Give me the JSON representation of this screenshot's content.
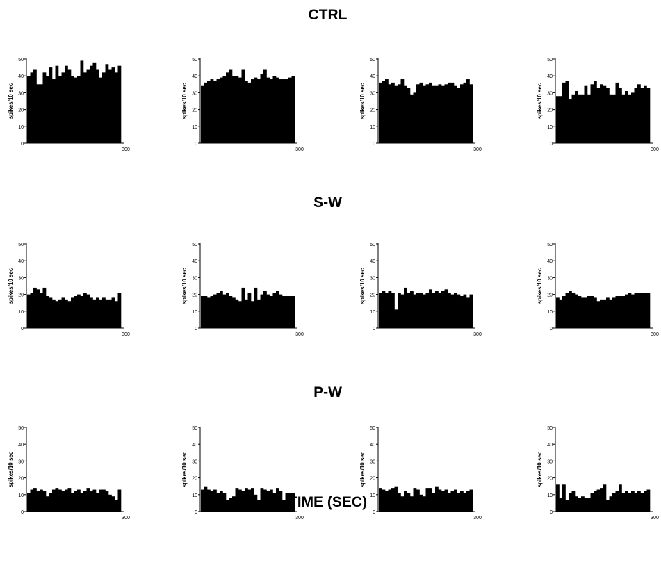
{
  "figure": {
    "x_axis_title": "TIME (SEC)",
    "y_axis_label": "spikes/10 sec",
    "bar_color": "#000000"
  },
  "chart_data": [
    {
      "type": "bar",
      "section": "CTRL",
      "panels": [
        {
          "ylabel": "spikes/10 sec",
          "ylim": [
            0,
            50
          ],
          "yticks": [
            0,
            10,
            20,
            30,
            40,
            50
          ],
          "xlim": [
            0,
            300
          ],
          "xtick_labels": [
            "300"
          ],
          "values": [
            40,
            42,
            44,
            35,
            35,
            42,
            40,
            45,
            38,
            46,
            40,
            42,
            46,
            44,
            40,
            39,
            40,
            49,
            42,
            44,
            46,
            48,
            44,
            39,
            42,
            47,
            44,
            45,
            42,
            46
          ]
        },
        {
          "ylabel": "spikes/10 sec",
          "ylim": [
            0,
            50
          ],
          "yticks": [
            0,
            10,
            20,
            30,
            40,
            50
          ],
          "xlim": [
            0,
            300
          ],
          "xtick_labels": [
            "300"
          ],
          "values": [
            34,
            36,
            37,
            38,
            37,
            38,
            39,
            40,
            42,
            44,
            40,
            40,
            39,
            44,
            37,
            36,
            38,
            39,
            38,
            41,
            44,
            39,
            38,
            40,
            39,
            38,
            38,
            38,
            39,
            40
          ]
        },
        {
          "ylabel": "spikes/10 sec",
          "ylim": [
            0,
            50
          ],
          "yticks": [
            0,
            10,
            20,
            30,
            40,
            50
          ],
          "xlim": [
            0,
            300
          ],
          "xtick_labels": [
            "300"
          ],
          "values": [
            36,
            37,
            38,
            35,
            36,
            34,
            35,
            38,
            34,
            33,
            29,
            30,
            35,
            36,
            34,
            35,
            36,
            34,
            34,
            35,
            34,
            35,
            36,
            36,
            34,
            33,
            35,
            36,
            38,
            35
          ]
        },
        {
          "ylabel": "spikes/10 sec",
          "ylim": [
            0,
            50
          ],
          "yticks": [
            0,
            10,
            20,
            30,
            40,
            50
          ],
          "xlim": [
            0,
            300
          ],
          "xtick_labels": [
            "300"
          ],
          "values": [
            28,
            28,
            36,
            37,
            26,
            29,
            31,
            29,
            29,
            34,
            29,
            35,
            37,
            33,
            35,
            34,
            33,
            29,
            29,
            36,
            33,
            29,
            31,
            29,
            30,
            33,
            35,
            33,
            34,
            33
          ]
        }
      ]
    },
    {
      "type": "bar",
      "section": "S-W",
      "panels": [
        {
          "ylabel": "spikes/10 sec",
          "ylim": [
            0,
            50
          ],
          "yticks": [
            0,
            10,
            20,
            30,
            40,
            50
          ],
          "xlim": [
            0,
            300
          ],
          "xtick_labels": [
            "300"
          ],
          "values": [
            20,
            21,
            24,
            23,
            21,
            24,
            19,
            18,
            17,
            16,
            17,
            18,
            17,
            16,
            18,
            19,
            20,
            19,
            21,
            20,
            18,
            17,
            18,
            17,
            18,
            17,
            17,
            18,
            16,
            21
          ]
        },
        {
          "ylabel": "spikes/10 sec",
          "ylim": [
            0,
            50
          ],
          "yticks": [
            0,
            10,
            20,
            30,
            40,
            50
          ],
          "xlim": [
            0,
            300
          ],
          "xtick_labels": [
            "300"
          ],
          "values": [
            19,
            19,
            18,
            19,
            20,
            21,
            22,
            20,
            21,
            19,
            18,
            17,
            16,
            24,
            17,
            21,
            16,
            24,
            17,
            20,
            22,
            20,
            19,
            21,
            22,
            20,
            19,
            19,
            19,
            19
          ]
        },
        {
          "ylabel": "spikes/10 sec",
          "ylim": [
            0,
            50
          ],
          "yticks": [
            0,
            10,
            20,
            30,
            40,
            50
          ],
          "xlim": [
            0,
            300
          ],
          "xtick_labels": [
            "300"
          ],
          "values": [
            21,
            22,
            21,
            22,
            21,
            11,
            21,
            20,
            24,
            21,
            22,
            20,
            21,
            21,
            20,
            21,
            23,
            21,
            22,
            21,
            22,
            23,
            21,
            20,
            21,
            20,
            19,
            20,
            18,
            20
          ]
        },
        {
          "ylabel": "spikes/10 sec",
          "ylim": [
            0,
            50
          ],
          "yticks": [
            0,
            10,
            20,
            30,
            40,
            50
          ],
          "xlim": [
            0,
            300
          ],
          "xtick_labels": [
            "300"
          ],
          "values": [
            18,
            17,
            19,
            21,
            22,
            21,
            20,
            19,
            18,
            18,
            19,
            19,
            18,
            16,
            17,
            17,
            18,
            17,
            18,
            19,
            19,
            19,
            20,
            21,
            20,
            21,
            21,
            21,
            21,
            21
          ]
        }
      ]
    },
    {
      "type": "bar",
      "section": "P-W",
      "panels": [
        {
          "ylabel": "spikes/10 sec",
          "ylim": [
            0,
            50
          ],
          "yticks": [
            0,
            10,
            20,
            30,
            40,
            50
          ],
          "xlim": [
            0,
            300
          ],
          "xtick_labels": [
            "300"
          ],
          "values": [
            11,
            13,
            14,
            12,
            13,
            12,
            9,
            11,
            13,
            14,
            13,
            12,
            13,
            14,
            11,
            12,
            13,
            11,
            12,
            14,
            12,
            13,
            11,
            13,
            13,
            12,
            10,
            9,
            7,
            13
          ]
        },
        {
          "ylabel": "spikes/10 sec",
          "ylim": [
            0,
            50
          ],
          "yticks": [
            0,
            10,
            20,
            30,
            40,
            50
          ],
          "xlim": [
            0,
            300
          ],
          "xtick_labels": [
            "300"
          ],
          "values": [
            13,
            15,
            13,
            12,
            13,
            11,
            12,
            11,
            7,
            8,
            9,
            14,
            13,
            12,
            14,
            13,
            14,
            10,
            7,
            14,
            13,
            12,
            13,
            11,
            14,
            12,
            7,
            11,
            11,
            11
          ]
        },
        {
          "ylabel": "spikes/10 sec",
          "ylim": [
            0,
            50
          ],
          "yticks": [
            0,
            10,
            20,
            30,
            40,
            50
          ],
          "xlim": [
            0,
            300
          ],
          "xtick_labels": [
            "300"
          ],
          "values": [
            14,
            13,
            12,
            13,
            14,
            15,
            11,
            9,
            12,
            11,
            9,
            14,
            13,
            10,
            9,
            14,
            14,
            11,
            15,
            13,
            12,
            13,
            11,
            12,
            13,
            11,
            12,
            11,
            12,
            13
          ]
        },
        {
          "ylabel": "spikes/10 sec",
          "ylim": [
            0,
            50
          ],
          "yticks": [
            0,
            10,
            20,
            30,
            40,
            50
          ],
          "xlim": [
            0,
            300
          ],
          "xtick_labels": [
            "300"
          ],
          "values": [
            16,
            8,
            16,
            7,
            11,
            12,
            9,
            8,
            9,
            8,
            8,
            11,
            12,
            13,
            14,
            16,
            7,
            9,
            11,
            12,
            16,
            11,
            12,
            11,
            12,
            11,
            12,
            11,
            12,
            13
          ]
        }
      ]
    }
  ]
}
